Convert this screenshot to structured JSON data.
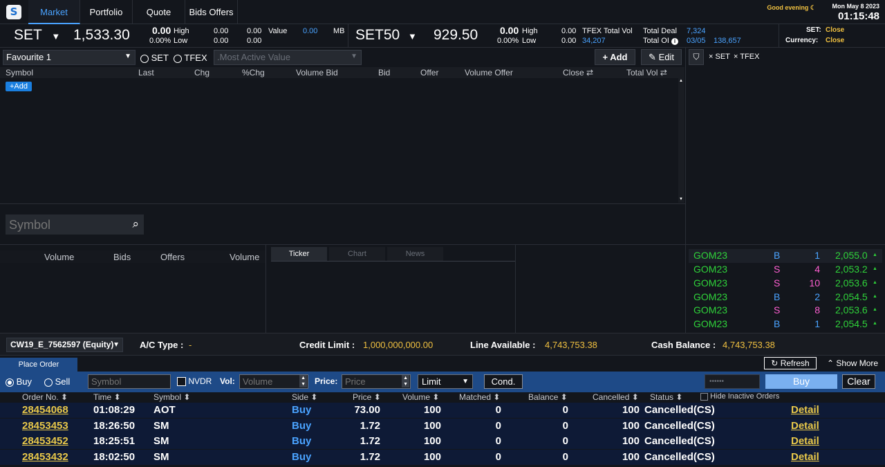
{
  "nav": {
    "logo": "S",
    "tabs": [
      "Market",
      "Portfolio",
      "Quote",
      "Bids Offers"
    ],
    "greeting": "Good evening",
    "date": "Mon May 8 2023",
    "time": "01:15:48"
  },
  "set": {
    "name": "SET",
    "value": "1,533.30",
    "chg": "0.00",
    "pct": "0.00%",
    "high_label": "High",
    "low_label": "Low",
    "high": "0.00",
    "low": "0.00",
    "v1": "0.00",
    "v2": "0.00",
    "value_label": "Value",
    "value_val": "0.00",
    "mb": "MB"
  },
  "set50": {
    "name": "SET50",
    "value": "929.50",
    "chg": "0.00",
    "pct": "0.00%",
    "high_label": "High",
    "low_label": "Low",
    "high": "0.00",
    "low": "0.00"
  },
  "tfex": {
    "label": "TFEX",
    "total_vol_label": "Total Vol",
    "total_vol": "34,207",
    "total_deal_label": "Total Deal",
    "total_deal": "7,324",
    "total_oi_label": "Total OI",
    "oi_date": "03/05",
    "oi_val": "138,657"
  },
  "status": {
    "set_label": "SET:",
    "set_val": "Close",
    "cur_label": "Currency:",
    "cur_val": "Close"
  },
  "fav": {
    "select": "Favourite 1",
    "radio_set": "SET",
    "radio_tfex": "TFEX",
    "most_active": ".Most Active Value",
    "add": "Add",
    "edit": "Edit",
    "add_row": "+Add"
  },
  "filter": {
    "tag1": "SET",
    "tag2": "TFEX"
  },
  "columns": [
    "Symbol",
    "Last",
    "Chg",
    "%Chg",
    "Volume Bid",
    "Bid",
    "Offer",
    "Volume Offer",
    "Close",
    "Total Vol"
  ],
  "search": {
    "placeholder": "Symbol"
  },
  "depth": {
    "cols": [
      "Volume",
      "Bids",
      "Offers",
      "Volume"
    ]
  },
  "tabs2": [
    "Ticker",
    "Chart",
    "News"
  ],
  "gom": [
    {
      "sym": "GOM23",
      "side": "B",
      "qty": "1",
      "price": "2,055.0"
    },
    {
      "sym": "GOM23",
      "side": "S",
      "qty": "4",
      "price": "2,053.2"
    },
    {
      "sym": "GOM23",
      "side": "S",
      "qty": "10",
      "price": "2,053.6"
    },
    {
      "sym": "GOM23",
      "side": "B",
      "qty": "2",
      "price": "2,054.5"
    },
    {
      "sym": "GOM23",
      "side": "S",
      "qty": "8",
      "price": "2,053.6"
    },
    {
      "sym": "GOM23",
      "side": "B",
      "qty": "1",
      "price": "2,054.5"
    }
  ],
  "account": {
    "select": "CW19_E_7562597 (Equity)",
    "ac_type_label": "A/C Type :",
    "ac_type": "-",
    "credit_label": "Credit Limit :",
    "credit": "1,000,000,000.00",
    "line_label": "Line Available :",
    "line": "4,743,753.38",
    "cash_label": "Cash Balance :",
    "cash": "4,743,753.38"
  },
  "place": {
    "tab": "Place Order",
    "refresh": "Refresh",
    "show_more": "Show More",
    "buy": "Buy",
    "sell": "Sell",
    "symbol_ph": "Symbol",
    "nvdr": "NVDR",
    "vol_label": "Vol:",
    "vol_ph": "Volume",
    "price_label": "Price:",
    "price_ph": "Price",
    "type": "Limit",
    "cond": "Cond.",
    "pin": "••••••",
    "buy_btn": "Buy",
    "clear": "Clear"
  },
  "orders": {
    "cols": [
      "Order No.",
      "Time",
      "Symbol",
      "Side",
      "Price",
      "Volume",
      "Matched",
      "Balance",
      "Cancelled",
      "Status"
    ],
    "hide": "Hide Inactive Orders",
    "rows": [
      {
        "no": "28454068",
        "time": "01:08:29",
        "sym": "AOT",
        "side": "Buy",
        "price": "73.00",
        "vol": "100",
        "matched": "0",
        "bal": "0",
        "cancel": "100",
        "status": "Cancelled(CS)",
        "detail": "Detail"
      },
      {
        "no": "28453453",
        "time": "18:26:50",
        "sym": "SM",
        "side": "Buy",
        "price": "1.72",
        "vol": "100",
        "matched": "0",
        "bal": "0",
        "cancel": "100",
        "status": "Cancelled(CS)",
        "detail": "Detail"
      },
      {
        "no": "28453452",
        "time": "18:25:51",
        "sym": "SM",
        "side": "Buy",
        "price": "1.72",
        "vol": "100",
        "matched": "0",
        "bal": "0",
        "cancel": "100",
        "status": "Cancelled(CS)",
        "detail": "Detail"
      },
      {
        "no": "28453432",
        "time": "18:02:50",
        "sym": "SM",
        "side": "Buy",
        "price": "1.72",
        "vol": "100",
        "matched": "0",
        "bal": "0",
        "cancel": "100",
        "status": "Cancelled(CS)",
        "detail": "Detail"
      }
    ]
  },
  "colors": {
    "green": "#2fd33a",
    "buy": "#4aa3ff",
    "sell": "#ff5fd2",
    "accent": "#4aa3ff"
  }
}
